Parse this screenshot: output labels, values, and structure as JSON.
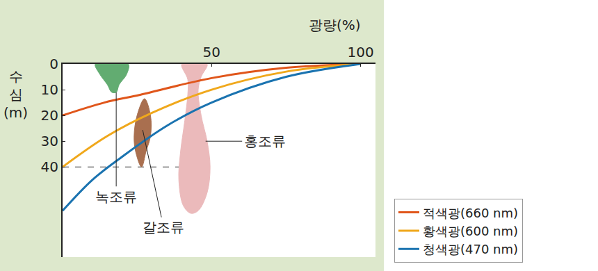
{
  "chart_data": {
    "type": "line",
    "x_label": "광량(%)",
    "y_label": "수심(m)",
    "xlim": [
      0,
      105
    ],
    "ylim": [
      0,
      75
    ],
    "xticks": [
      50,
      100
    ],
    "yticks": [
      0,
      10,
      20,
      30,
      40
    ],
    "grid": false,
    "legend": "bottom-right",
    "series": [
      {
        "name": "적색광(660 nm)",
        "color": "#e0561b",
        "x": [
          100,
          75,
          50,
          26,
          14,
          0
        ],
        "values": [
          0,
          1.5,
          5.5,
          12,
          15,
          20
        ]
      },
      {
        "name": "황색광(600 nm)",
        "color": "#f0a81c",
        "x": [
          100,
          75,
          50,
          30,
          15,
          0
        ],
        "values": [
          0,
          3,
          10,
          19,
          28,
          40
        ]
      },
      {
        "name": "청색광(470 nm)",
        "color": "#1a73b0",
        "x": [
          100,
          75,
          50,
          35,
          20,
          10,
          0
        ],
        "values": [
          0,
          5,
          15,
          24,
          36,
          45,
          57
        ]
      }
    ],
    "regions": [
      {
        "name": "녹조류",
        "color": "#5aa86a",
        "x": [
          11,
          22,
          21.5,
          19,
          18,
          16.5,
          15,
          12.5,
          11
        ],
        "values": [
          0,
          0,
          4,
          8,
          11,
          11,
          8,
          4,
          0
        ]
      },
      {
        "name": "갈조류",
        "color": "#a0603c",
        "x": [
          27.5,
          29.5,
          29.5,
          28,
          26.5,
          24.5,
          24,
          25,
          27.5
        ],
        "values": [
          13.5,
          20,
          28,
          34,
          40,
          34,
          28,
          20,
          13.5
        ]
      },
      {
        "name": "홍조류",
        "color": "#e8aeb0",
        "x": [
          40,
          48.5,
          46.5,
          45.5,
          46.5,
          48.5,
          49.5,
          48.5,
          45.5,
          43,
          40.5,
          39,
          39.5,
          41,
          42,
          42,
          40
        ],
        "values": [
          0,
          0,
          5,
          10,
          20,
          30,
          40,
          50,
          57,
          58,
          55,
          45,
          35,
          22,
          12,
          6,
          0
        ]
      }
    ],
    "guide_line": {
      "y": 40,
      "x": [
        0,
        39
      ]
    }
  }
}
